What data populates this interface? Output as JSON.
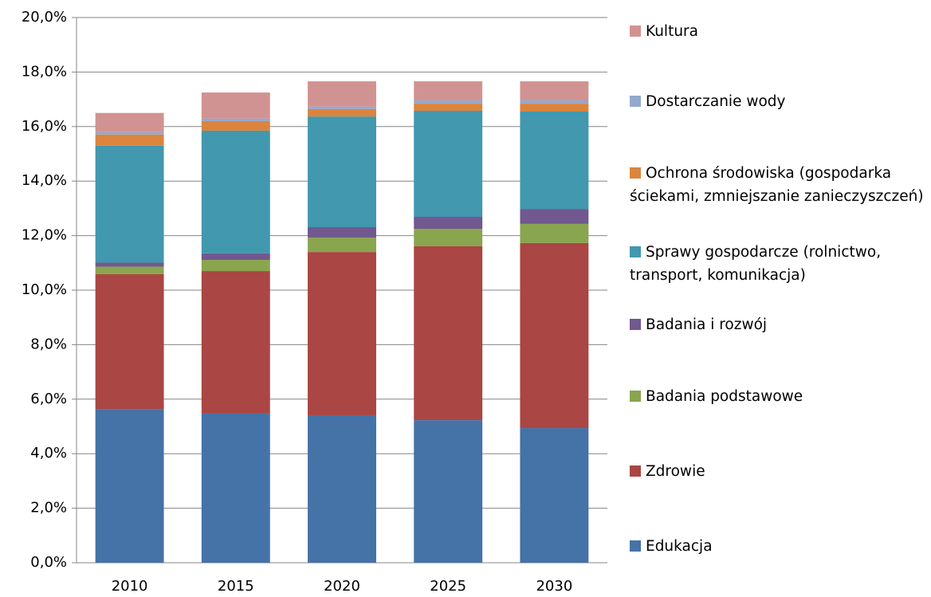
{
  "chart_data": {
    "type": "stacked_bar",
    "categories": [
      "2010",
      "2015",
      "2020",
      "2025",
      "2030"
    ],
    "series": [
      {
        "name": "Edukacja",
        "color": "#4572a7",
        "values": [
          5.64,
          5.47,
          5.41,
          5.23,
          4.94
        ]
      },
      {
        "name": "Zdrowie",
        "color": "#aa4643",
        "values": [
          4.95,
          5.23,
          5.99,
          6.38,
          6.79
        ]
      },
      {
        "name": "Badania podstawowe",
        "color": "#89a54e",
        "values": [
          0.27,
          0.41,
          0.53,
          0.64,
          0.7
        ]
      },
      {
        "name": "Badania i rozwój",
        "color": "#71588f",
        "values": [
          0.15,
          0.24,
          0.38,
          0.44,
          0.55
        ]
      },
      {
        "name": "Sprawy gospodarcze (rolnictwo, transport, komunikacja)",
        "color": "#4198af",
        "values": [
          4.29,
          4.5,
          4.06,
          3.89,
          3.57
        ]
      },
      {
        "name": "Ochrona środowiska (gospodarka ściekami, zmniejszanie zanieczyszczeń)",
        "color": "#db843d",
        "values": [
          0.41,
          0.35,
          0.27,
          0.26,
          0.29
        ]
      },
      {
        "name": "Dostarczanie wody",
        "color": "#93a9cf",
        "values": [
          0.09,
          0.09,
          0.09,
          0.12,
          0.12
        ]
      },
      {
        "name": "Kultura",
        "color": "#d19392",
        "values": [
          0.7,
          0.96,
          0.93,
          0.7,
          0.7
        ]
      }
    ],
    "ylim": [
      0,
      20
    ],
    "yticks": [
      {
        "value": 0,
        "label": "0,0%"
      },
      {
        "value": 2,
        "label": "2,0%"
      },
      {
        "value": 4,
        "label": "4,0%"
      },
      {
        "value": 6,
        "label": "6,0%"
      },
      {
        "value": 8,
        "label": "8,0%"
      },
      {
        "value": 10,
        "label": "10,0%"
      },
      {
        "value": 12,
        "label": "12,0%"
      },
      {
        "value": 14,
        "label": "14,0%"
      },
      {
        "value": 16,
        "label": "16,0%"
      },
      {
        "value": 18,
        "label": "18,0%"
      },
      {
        "value": 20,
        "label": "20,0%"
      }
    ],
    "grid": true,
    "legend": "right"
  }
}
